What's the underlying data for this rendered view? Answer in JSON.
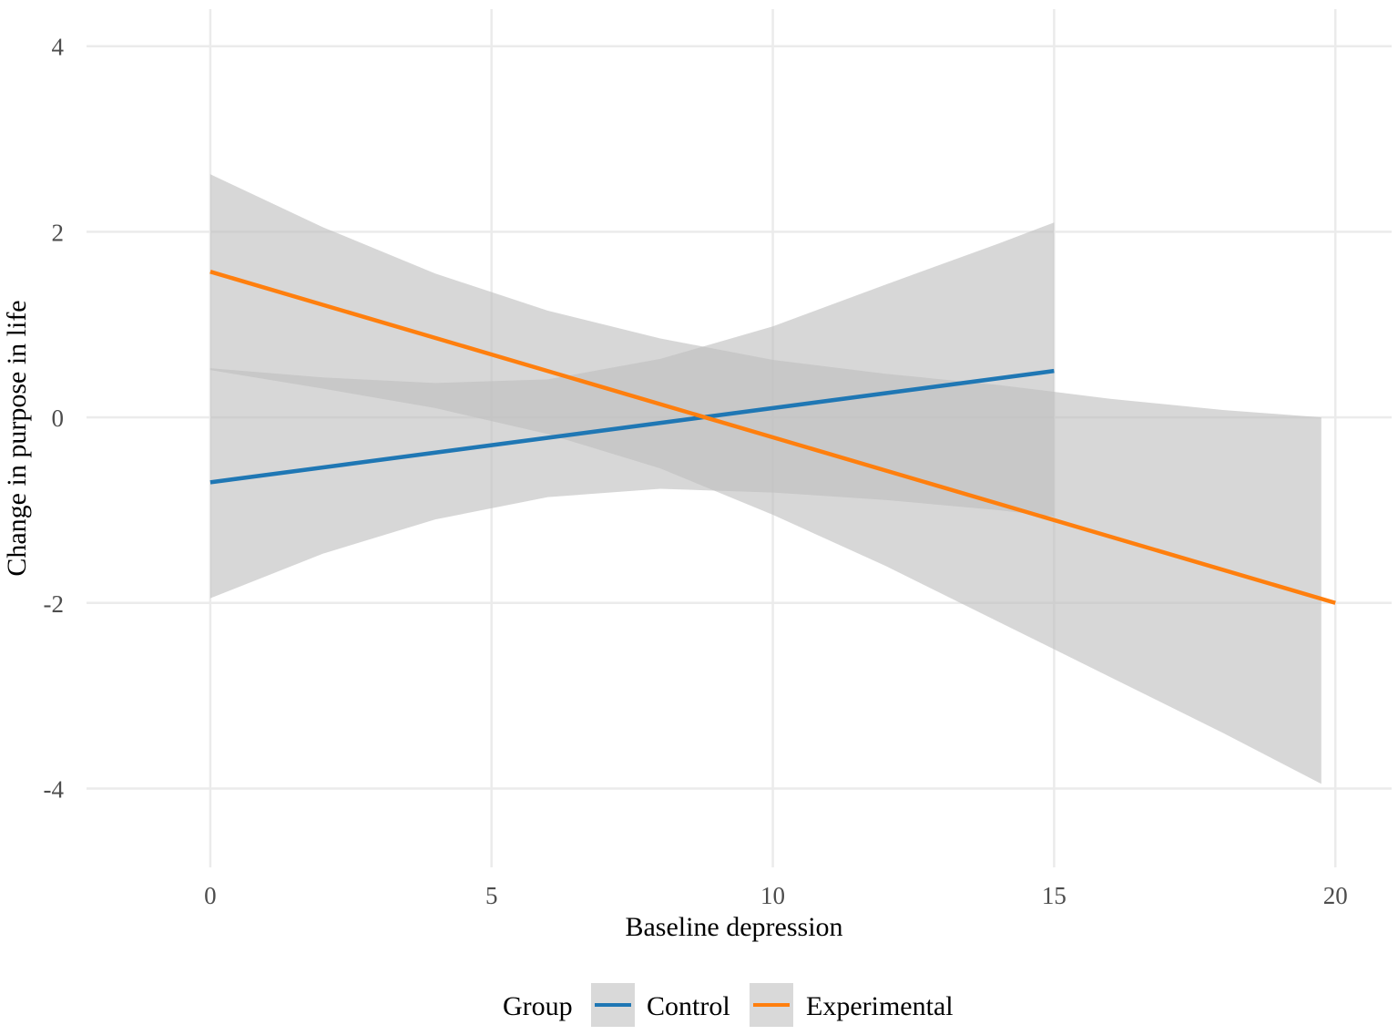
{
  "chart_data": {
    "type": "line",
    "title": "",
    "xlabel": "Baseline depression",
    "ylabel": "Change in purpose in life",
    "xlim": [
      -2.2,
      21.0
    ],
    "ylim": [
      -4.85,
      4.4
    ],
    "x_ticks": [
      0,
      5,
      10,
      15,
      20
    ],
    "y_ticks": [
      4,
      2,
      0,
      -2,
      -4
    ],
    "x_tick_labels": [
      "0",
      "5",
      "10",
      "15",
      "20"
    ],
    "y_tick_labels": [
      "4",
      "2",
      "0",
      "-2",
      "-4"
    ],
    "grid": true,
    "legend": {
      "title": "Group",
      "position": "bottom",
      "entries": [
        "Control",
        "Experimental"
      ]
    },
    "colors": {
      "control": "#1f77b4",
      "experimental": "#ff7f0e",
      "ribbon": "#bebebe",
      "grid": "#ebebeb",
      "legend_key_bg": "#d9d9d9"
    },
    "series": [
      {
        "name": "Control",
        "color": "#1f77b4",
        "x": [
          0,
          15
        ],
        "y": [
          -0.7,
          0.5
        ],
        "ribbon": {
          "x": [
            0,
            2,
            4,
            6,
            8,
            10,
            12,
            14,
            15
          ],
          "lower": [
            -1.95,
            -1.47,
            -1.1,
            -0.86,
            -0.77,
            -0.81,
            -0.89,
            -1.0,
            -1.07
          ],
          "upper": [
            0.53,
            0.43,
            0.37,
            0.41,
            0.63,
            0.98,
            1.43,
            1.87,
            2.1
          ]
        }
      },
      {
        "name": "Experimental",
        "color": "#ff7f0e",
        "x": [
          0,
          20
        ],
        "y": [
          1.57,
          -2.0
        ],
        "ribbon": {
          "x": [
            0,
            2,
            4,
            6,
            8,
            10,
            12,
            14,
            16,
            18,
            19.75
          ],
          "lower": [
            0.51,
            0.31,
            0.1,
            -0.18,
            -0.55,
            -1.05,
            -1.6,
            -2.2,
            -2.8,
            -3.4,
            -3.95
          ],
          "upper": [
            2.62,
            2.05,
            1.55,
            1.15,
            0.85,
            0.62,
            0.47,
            0.35,
            0.2,
            0.08,
            0.0
          ]
        }
      }
    ]
  }
}
